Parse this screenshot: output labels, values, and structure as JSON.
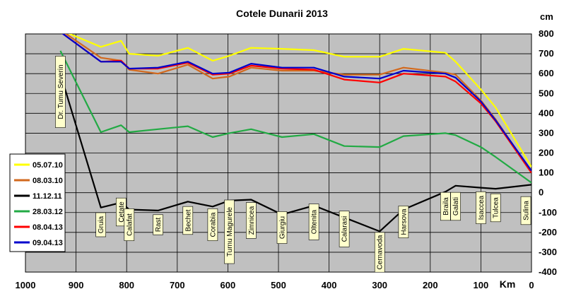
{
  "chart_data": {
    "type": "line",
    "title": "Cotele Dunarii 2013",
    "xlabel": "Km",
    "ylabel": "cm",
    "xlim": [
      1000,
      0
    ],
    "ylim": [
      -400,
      800
    ],
    "x_ticks": [
      1000,
      900,
      800,
      700,
      600,
      500,
      400,
      300,
      200,
      100,
      0
    ],
    "y_ticks": [
      -400,
      -300,
      -200,
      -100,
      0,
      100,
      200,
      300,
      400,
      500,
      600,
      700,
      800
    ],
    "grid": true,
    "plot_background": "#c0c0c0",
    "legend_position": "left",
    "stations": [
      {
        "name": "Dr. Tumu  Severin",
        "km": 931
      },
      {
        "name": "Gruia",
        "km": 851
      },
      {
        "name": "Cetate",
        "km": 811
      },
      {
        "name": "Calafat",
        "km": 795
      },
      {
        "name": "Rast",
        "km": 738
      },
      {
        "name": "Bechet",
        "km": 679
      },
      {
        "name": "Corabia",
        "km": 630
      },
      {
        "name": "Turnu  Magurele",
        "km": 597
      },
      {
        "name": "Zimnicea",
        "km": 554
      },
      {
        "name": "Giurgiu",
        "km": 493
      },
      {
        "name": "Oltenita",
        "km": 430
      },
      {
        "name": "Calarasi",
        "km": 370
      },
      {
        "name": "Cernavoda",
        "km": 300
      },
      {
        "name": "Harsova",
        "km": 253
      },
      {
        "name": "Braila",
        "km": 170
      },
      {
        "name": "Galati",
        "km": 150
      },
      {
        "name": "Isaccea",
        "km": 100
      },
      {
        "name": "Tulcea",
        "km": 71
      },
      {
        "name": "Sulina",
        "km": 0
      }
    ],
    "series": [
      {
        "name": "05.07.10",
        "color": "#ffff00",
        "x": [
          931,
          851,
          811,
          795,
          738,
          679,
          630,
          597,
          554,
          493,
          430,
          370,
          300,
          253,
          170,
          150,
          100,
          71,
          0
        ],
        "values": [
          820,
          735,
          765,
          700,
          690,
          730,
          665,
          690,
          730,
          725,
          718,
          685,
          685,
          725,
          705,
          660,
          520,
          430,
          130
        ]
      },
      {
        "name": "08.03.10",
        "color": "#d2691e",
        "x": [
          931,
          851,
          811,
          795,
          738,
          679,
          630,
          597,
          554,
          493,
          430,
          370,
          300,
          253,
          170,
          150,
          100,
          71,
          0
        ],
        "values": [
          820,
          680,
          665,
          620,
          600,
          645,
          575,
          585,
          630,
          615,
          615,
          595,
          595,
          630,
          605,
          595,
          465,
          370,
          105
        ]
      },
      {
        "name": "11.12.11",
        "color": "#000000",
        "x": [
          931,
          851,
          811,
          795,
          738,
          679,
          630,
          597,
          554,
          493,
          430,
          370,
          300,
          253,
          170,
          150,
          100,
          71,
          0
        ],
        "values": [
          600,
          -75,
          -50,
          -85,
          -90,
          -45,
          -70,
          -40,
          -35,
          -110,
          -65,
          -125,
          -195,
          -85,
          5,
          35,
          25,
          20,
          40
        ]
      },
      {
        "name": "28.03.12",
        "color": "#22aa44",
        "x": [
          931,
          851,
          811,
          795,
          738,
          679,
          630,
          597,
          554,
          493,
          430,
          370,
          300,
          253,
          170,
          150,
          100,
          71,
          0
        ],
        "values": [
          715,
          305,
          340,
          305,
          320,
          335,
          280,
          300,
          320,
          280,
          295,
          235,
          230,
          285,
          300,
          290,
          230,
          180,
          50
        ]
      },
      {
        "name": "08.04.13",
        "color": "#ff0000",
        "x": [
          931,
          851,
          811,
          795,
          738,
          679,
          630,
          597,
          554,
          493,
          430,
          370,
          300,
          253,
          170,
          150,
          100,
          71,
          0
        ],
        "values": [
          810,
          660,
          665,
          625,
          625,
          655,
          595,
          600,
          640,
          625,
          620,
          570,
          555,
          600,
          585,
          560,
          450,
          360,
          100
        ]
      },
      {
        "name": "09.04.13",
        "color": "#0000cc",
        "x": [
          931,
          851,
          811,
          795,
          738,
          679,
          630,
          597,
          554,
          493,
          430,
          370,
          300,
          253,
          170,
          150,
          100,
          71,
          0
        ],
        "values": [
          810,
          660,
          660,
          625,
          630,
          660,
          600,
          605,
          650,
          630,
          630,
          585,
          575,
          615,
          600,
          580,
          460,
          365,
          110
        ]
      }
    ]
  }
}
